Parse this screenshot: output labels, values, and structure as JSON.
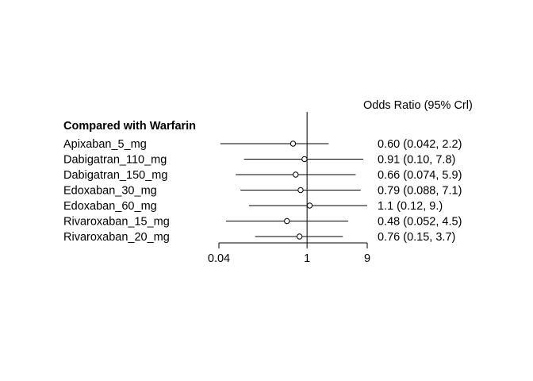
{
  "chart_data": {
    "type": "forest",
    "column_header": "Odds Ratio (95% Crl)",
    "group_label": "Compared with Warfarin",
    "x_scale": "log",
    "reference_value": 1,
    "xlim": [
      0.04,
      9
    ],
    "x_ticks": [
      {
        "value": 0.04,
        "label": "0.04"
      },
      {
        "value": 1,
        "label": "1"
      },
      {
        "value": 9,
        "label": "9"
      }
    ],
    "rows": [
      {
        "label": "Apixaban_5_mg",
        "or": 0.6,
        "lo": 0.042,
        "hi": 2.2,
        "text": "0.60 (0.042, 2.2)"
      },
      {
        "label": "Dabigatran_110_mg",
        "or": 0.91,
        "lo": 0.1,
        "hi": 7.8,
        "text": "0.91 (0.10, 7.8)"
      },
      {
        "label": "Dabigatran_150_mg",
        "or": 0.66,
        "lo": 0.074,
        "hi": 5.9,
        "text": "0.66 (0.074, 5.9)"
      },
      {
        "label": "Edoxaban_30_mg",
        "or": 0.79,
        "lo": 0.088,
        "hi": 7.1,
        "text": "0.79 (0.088, 7.1)"
      },
      {
        "label": "Edoxaban_60_mg",
        "or": 1.1,
        "lo": 0.12,
        "hi": 9.0,
        "text": "1.1 (0.12,  9.)"
      },
      {
        "label": "Rivaroxaban_15_mg",
        "or": 0.48,
        "lo": 0.052,
        "hi": 4.5,
        "text": "0.48 (0.052, 4.5)"
      },
      {
        "label": "Rivaroxaban_20_mg",
        "or": 0.76,
        "lo": 0.15,
        "hi": 3.7,
        "text": "0.76 (0.15, 3.7)"
      }
    ]
  }
}
